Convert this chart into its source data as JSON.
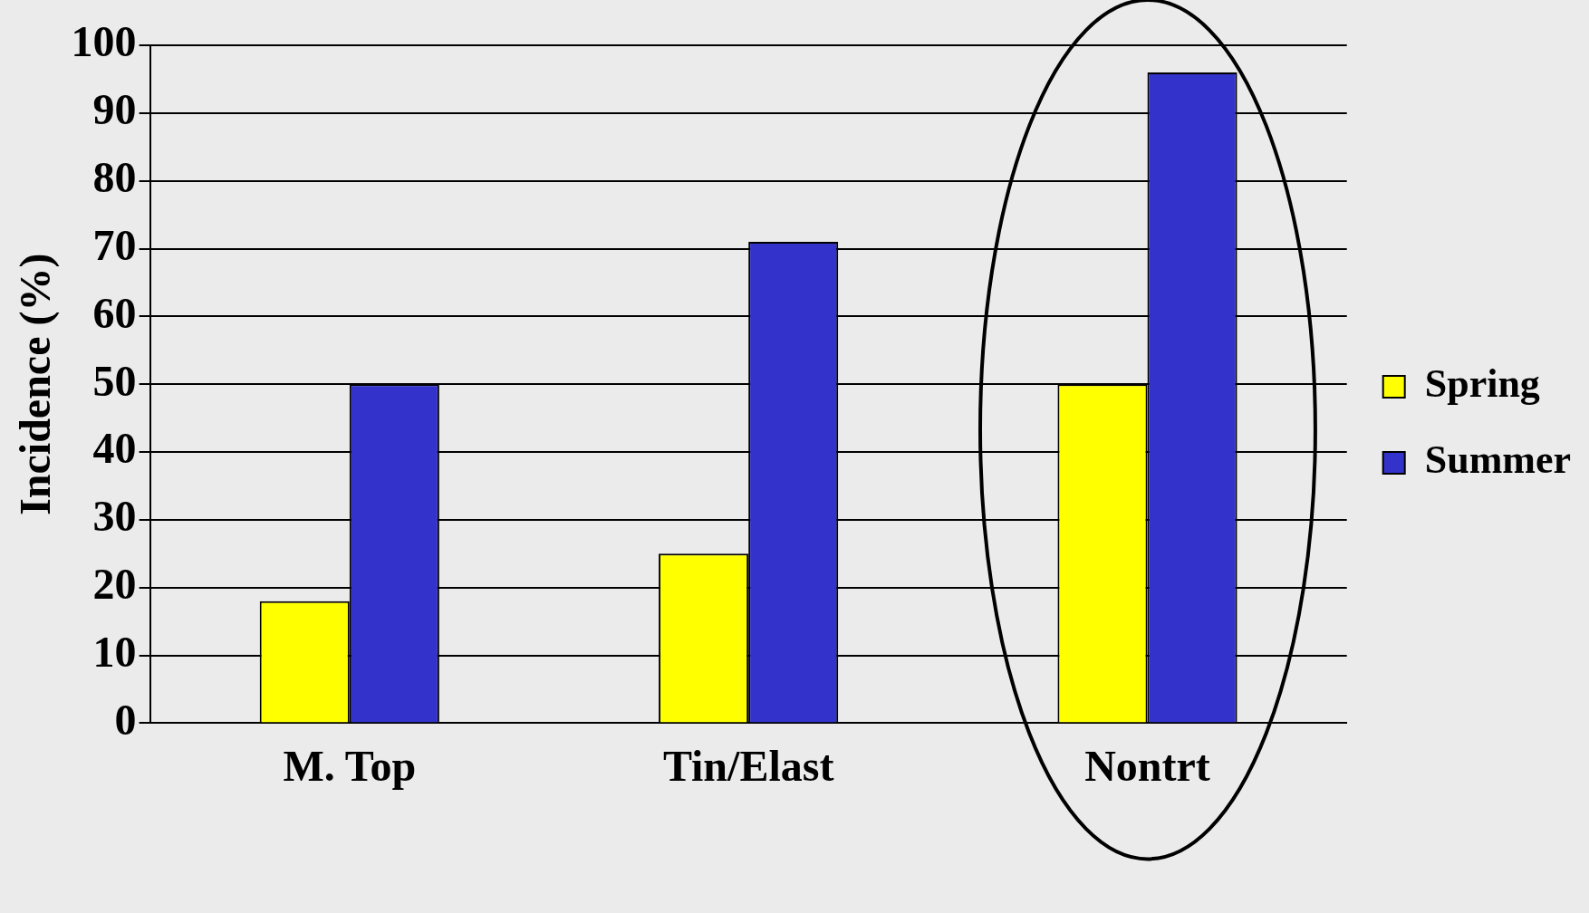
{
  "chart_data": {
    "type": "bar",
    "ylabel": "Incidence (%)",
    "categories": [
      "M. Top",
      "Tin/Elast",
      "Nontrt"
    ],
    "series": [
      {
        "name": "Spring",
        "color": "#ffff00",
        "values": [
          18,
          25,
          50
        ]
      },
      {
        "name": "Summer",
        "color": "#3333cc",
        "values": [
          50,
          71,
          96
        ]
      }
    ],
    "ylim": [
      0,
      100
    ],
    "yticks": [
      0,
      10,
      20,
      30,
      40,
      50,
      60,
      70,
      80,
      90,
      100
    ],
    "grid": "y",
    "legend": "right"
  }
}
